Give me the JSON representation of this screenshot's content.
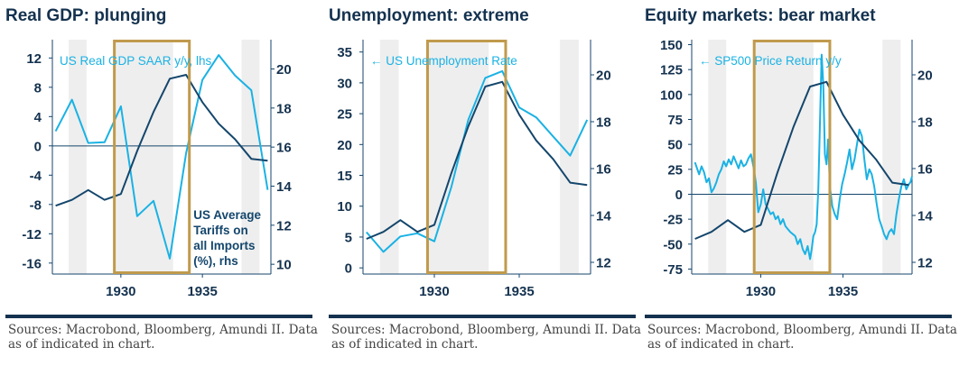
{
  "panels": [
    {
      "title": "Real GDP: plunging",
      "source_line1": "Sources: Macrobond, Bloomberg, Amundi II. Data",
      "source_line2": "as of indicated in chart."
    },
    {
      "title": "Unemployment: extreme",
      "source_line1": "Sources: Macrobond, Bloomberg, Amundi II. Data",
      "source_line2": "as of indicated in chart."
    },
    {
      "title": "Equity markets: bear market",
      "source_line1": "Sources: Macrobond, Bloomberg, Amundi II. Data",
      "source_line2": "as of indicated in chart."
    }
  ],
  "colors": {
    "light_blue": "#1ab2e4",
    "dark_navy": "#14466c",
    "highlight_box": "#c09a4c",
    "shade": "#eeeeee",
    "title": "#14324f"
  },
  "chart_data": [
    {
      "type": "line",
      "title": "Real GDP: plunging",
      "x_ticks": [
        "1930",
        "1935"
      ],
      "xlim": [
        1925.8,
        1939.2
      ],
      "ylim_left": [
        -17.5,
        14.5
      ],
      "yticks_left": [
        "12",
        "8",
        "4",
        "0",
        "-4",
        "-8",
        "-12",
        "-16"
      ],
      "ylim_right": [
        9.5,
        21.5
      ],
      "yticks_right": [
        "20",
        "18",
        "16",
        "14",
        "12",
        "10"
      ],
      "zero_line": 0,
      "shaded_periods": [
        [
          1926.8,
          1927.9
        ],
        [
          1929.6,
          1933.2
        ],
        [
          1937.4,
          1938.5
        ]
      ],
      "highlight_period": [
        1929.6,
        1934.2
      ],
      "annotations": [
        {
          "text": "US Real GDP SAAR y/y, lhs",
          "color": "#1ab2e4"
        }
      ],
      "legend_lines": [
        "US Average",
        "Tariffs on",
        "all Imports",
        "(%), rhs"
      ],
      "series": [
        {
          "name": "US Real GDP SAAR y/y, lhs",
          "axis": "left",
          "color": "#1ab2e4",
          "x": [
            1926,
            1927,
            1928,
            1929,
            1930,
            1931,
            1932,
            1933,
            1934,
            1935,
            1936,
            1937,
            1938,
            1939
          ],
          "y": [
            2,
            6.3,
            0.4,
            0.5,
            5.4,
            -9.6,
            -7.5,
            -15.4,
            -1,
            9,
            12.4,
            9.6,
            7.6,
            -6
          ]
        },
        {
          "name": "US Average Tariffs on all Imports (%), rhs",
          "axis": "right",
          "color": "#14466c",
          "x": [
            1926,
            1927,
            1928,
            1929,
            1930,
            1931,
            1932,
            1933,
            1934,
            1935,
            1936,
            1937,
            1938,
            1939
          ],
          "y": [
            13.0,
            13.3,
            13.8,
            13.3,
            13.6,
            15.8,
            17.8,
            19.5,
            19.7,
            18.3,
            17.2,
            16.4,
            15.4,
            15.3
          ]
        }
      ]
    },
    {
      "type": "line",
      "title": "Unemployment: extreme",
      "x_ticks": [
        "1930",
        "1935"
      ],
      "xlim": [
        1925.8,
        1939.2
      ],
      "ylim_left": [
        -1,
        37
      ],
      "yticks_left": [
        "35",
        "30",
        "25",
        "20",
        "15",
        "10",
        "5",
        "0"
      ],
      "ylim_right": [
        11.5,
        21.5
      ],
      "yticks_right": [
        "20",
        "18",
        "16",
        "14",
        "12"
      ],
      "shaded_periods": [
        [
          1926.8,
          1927.9
        ],
        [
          1929.6,
          1933.2
        ],
        [
          1937.4,
          1938.5
        ]
      ],
      "highlight_period": [
        1929.6,
        1934.2
      ],
      "annotations": [
        {
          "text": "← US Unemployment Rate",
          "color": "#1ab2e4"
        }
      ],
      "series": [
        {
          "name": "US Unemployment Rate",
          "axis": "left",
          "color": "#1ab2e4",
          "x": [
            1926,
            1927,
            1928,
            1929,
            1930,
            1931,
            1932,
            1933,
            1934,
            1935,
            1936,
            1937,
            1938,
            1939
          ],
          "y": [
            5.8,
            2.6,
            5.1,
            5.6,
            4.3,
            13.1,
            24,
            30.8,
            31.9,
            26,
            24.4,
            21.3,
            18.2,
            24
          ]
        },
        {
          "axis": "right",
          "color": "#14466c",
          "x": [
            1926,
            1927,
            1928,
            1929,
            1930,
            1931,
            1932,
            1933,
            1934,
            1935,
            1936,
            1937,
            1938,
            1939
          ],
          "y": [
            13.0,
            13.3,
            13.8,
            13.3,
            13.6,
            15.8,
            17.8,
            19.5,
            19.7,
            18.3,
            17.2,
            16.4,
            15.4,
            15.3
          ]
        }
      ]
    },
    {
      "type": "line",
      "title": "Equity markets: bear market",
      "x_ticks": [
        "1930",
        "1935"
      ],
      "xlim": [
        1925.8,
        1939.2
      ],
      "ylim_left": [
        -80,
        155
      ],
      "yticks_left": [
        "150",
        "125",
        "100",
        "75",
        "50",
        "25",
        "0",
        "-25",
        "-50",
        "-75"
      ],
      "ylim_right": [
        11.5,
        21.5
      ],
      "yticks_right": [
        "20",
        "18",
        "16",
        "14",
        "12"
      ],
      "zero_line": 0,
      "shaded_periods": [
        [
          1926.8,
          1927.9
        ],
        [
          1929.6,
          1933.2
        ],
        [
          1937.4,
          1938.5
        ]
      ],
      "highlight_period": [
        1929.6,
        1934.2
      ],
      "annotations": [
        {
          "text": "← SP500 Price Return y/y",
          "color": "#1ab2e4"
        }
      ],
      "series": [
        {
          "name": "SP500 Price Return y/y",
          "axis": "left",
          "color": "#1ab2e4",
          "x": [
            1926,
            1926.1,
            1926.25,
            1926.4,
            1926.55,
            1926.7,
            1926.85,
            1927.0,
            1927.15,
            1927.3,
            1927.45,
            1927.6,
            1927.75,
            1927.9,
            1928.05,
            1928.2,
            1928.35,
            1928.5,
            1928.65,
            1928.8,
            1928.95,
            1929.1,
            1929.25,
            1929.4,
            1929.55,
            1929.7,
            1929.85,
            1930.0,
            1930.15,
            1930.3,
            1930.45,
            1930.6,
            1930.75,
            1930.9,
            1931.05,
            1931.2,
            1931.35,
            1931.5,
            1931.65,
            1931.8,
            1931.95,
            1932.1,
            1932.25,
            1932.4,
            1932.55,
            1932.7,
            1932.85,
            1933.0,
            1933.1,
            1933.2,
            1933.3,
            1933.4,
            1933.5,
            1933.6,
            1933.7,
            1933.8,
            1933.9,
            1934.0,
            1934.1,
            1934.2,
            1934.35,
            1934.5,
            1934.65,
            1934.8,
            1934.95,
            1935.1,
            1935.25,
            1935.4,
            1935.55,
            1935.7,
            1935.85,
            1936.0,
            1936.15,
            1936.3,
            1936.45,
            1936.6,
            1936.75,
            1936.9,
            1937.05,
            1937.2,
            1937.35,
            1937.5,
            1937.65,
            1937.8,
            1937.95,
            1938.1,
            1938.25,
            1938.4,
            1938.55,
            1938.7,
            1938.85,
            1939.0,
            1939.1,
            1939.2
          ],
          "y": [
            32,
            27,
            20,
            28,
            22,
            12,
            16,
            2,
            6,
            12,
            20,
            25,
            33,
            28,
            35,
            30,
            38,
            32,
            26,
            34,
            28,
            30,
            36,
            40,
            28,
            12,
            -18,
            -10,
            5,
            -10,
            -15,
            -20,
            -18,
            -25,
            -22,
            -30,
            -25,
            -32,
            -35,
            -38,
            -40,
            -42,
            -50,
            -45,
            -55,
            -60,
            -52,
            -65,
            -55,
            -42,
            -38,
            -30,
            5,
            70,
            140,
            110,
            40,
            30,
            55,
            8,
            -12,
            -20,
            -25,
            -5,
            10,
            20,
            32,
            45,
            25,
            35,
            50,
            65,
            58,
            35,
            15,
            25,
            20,
            8,
            -10,
            -25,
            -32,
            -40,
            -45,
            -38,
            -35,
            -40,
            -20,
            -5,
            8,
            15,
            5,
            10,
            12,
            18
          ]
        },
        {
          "axis": "right",
          "color": "#14466c",
          "x": [
            1926,
            1927,
            1928,
            1929,
            1930,
            1931,
            1932,
            1933,
            1934,
            1935,
            1936,
            1937,
            1938,
            1939
          ],
          "y": [
            13.0,
            13.3,
            13.8,
            13.3,
            13.6,
            15.8,
            17.8,
            19.5,
            19.7,
            18.3,
            17.2,
            16.4,
            15.4,
            15.3
          ]
        }
      ]
    }
  ]
}
